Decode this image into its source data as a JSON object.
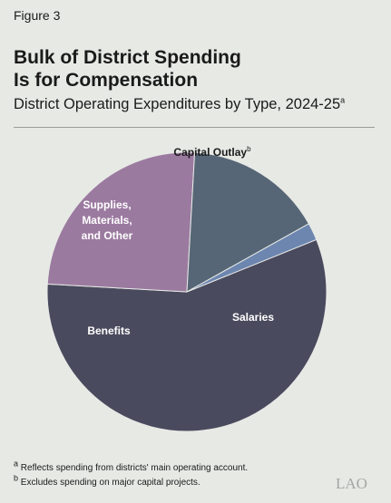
{
  "figure_label": "Figure 3",
  "title_lines": [
    "Bulk of District Spending",
    "Is for Compensation"
  ],
  "subtitle": "District Operating Expenditures by Type, 2024-25",
  "subtitle_note": "a",
  "chart_data": {
    "type": "pie",
    "categories": [
      "Salaries",
      "Benefits",
      "Supplies, Materials, and Other",
      "Capital Outlay"
    ],
    "values": [
      57,
      25,
      16,
      2
    ],
    "colors": [
      "#4a4a5e",
      "#9b7aa0",
      "#566676",
      "#6d86b0"
    ],
    "labels": [
      {
        "lines": [
          "Salaries"
        ],
        "color": "#ffffff"
      },
      {
        "lines": [
          "Benefits"
        ],
        "color": "#ffffff"
      },
      {
        "lines": [
          "Supplies,",
          "Materials,",
          "and Other"
        ],
        "color": "#ffffff"
      },
      {
        "lines": [
          "Capital Outlay"
        ],
        "color": "#1a1a1a",
        "note": "b"
      }
    ]
  },
  "footnotes": [
    {
      "mark": "a",
      "text": "Reflects spending from districts' main operating account."
    },
    {
      "mark": "b",
      "text": "Excludes spending on major capital projects."
    }
  ],
  "logo_text": "LAO"
}
